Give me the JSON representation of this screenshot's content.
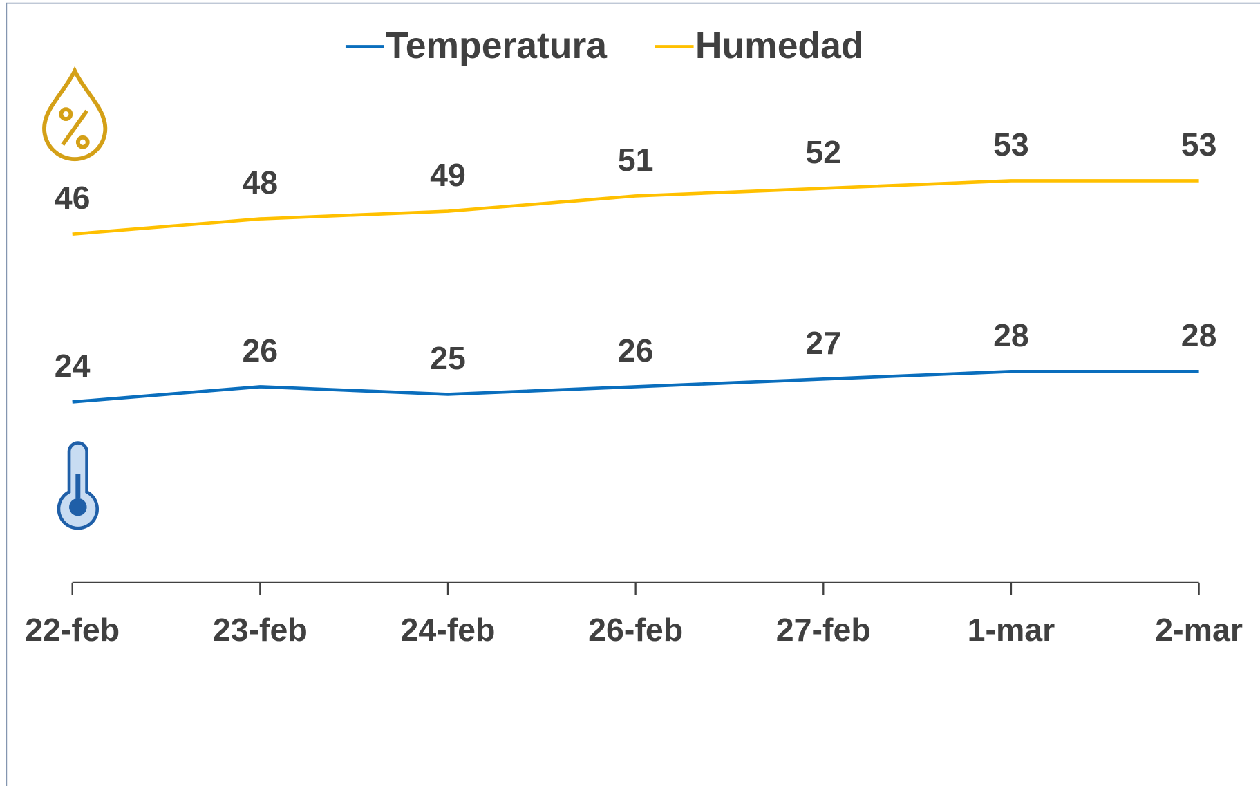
{
  "chart_data": {
    "type": "line",
    "categories": [
      "22-feb",
      "23-feb",
      "24-feb",
      "26-feb",
      "27-feb",
      "1-mar",
      "2-mar"
    ],
    "series": [
      {
        "name": "Temperatura",
        "color": "#0a6ebd",
        "values": [
          24,
          26,
          25,
          26,
          27,
          28,
          28
        ]
      },
      {
        "name": "Humedad",
        "color": "#ffc000",
        "values": [
          46,
          48,
          49,
          51,
          52,
          53,
          53
        ]
      }
    ],
    "ylim": [
      0,
      75
    ],
    "legend": "top"
  }
}
